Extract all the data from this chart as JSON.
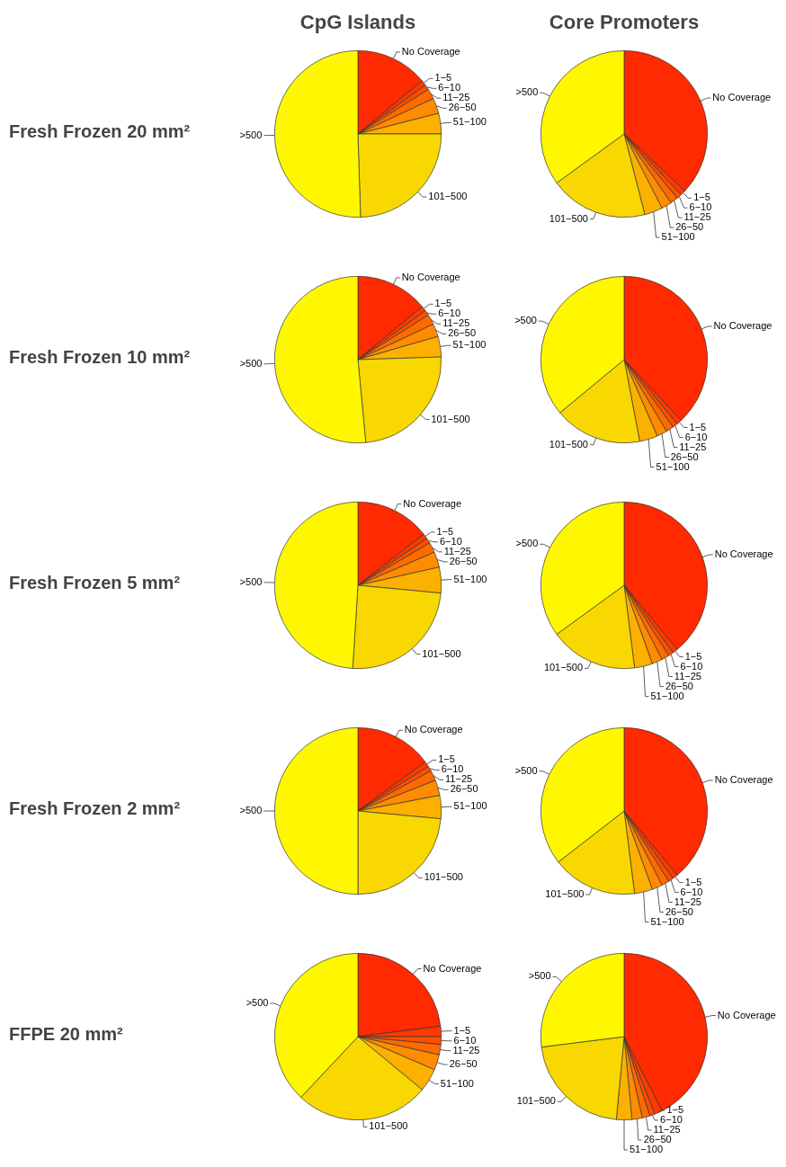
{
  "chart_data": [
    {
      "type": "pie",
      "title": "CpG Islands",
      "ylabel": "Fresh Frozen 20 mm²",
      "categories": [
        "No Coverage",
        "1−5",
        "6−10",
        "11−25",
        "26−50",
        "51−100",
        "101−500",
        ">500"
      ],
      "values": [
        14,
        1,
        1,
        2,
        3,
        4,
        24.5,
        50.5
      ],
      "colors": [
        "#ff2a00",
        "#ff3a00",
        "#ff4e00",
        "#ff6a00",
        "#ff8c00",
        "#fcb000",
        "#f8d800",
        "#fff700"
      ]
    },
    {
      "type": "pie",
      "title": "Core Promoters",
      "categories": [
        "No Coverage",
        "1−5",
        "6−10",
        "11−25",
        "26−50",
        "51−100",
        "101−500",
        ">500"
      ],
      "values": [
        37,
        1,
        1,
        1.5,
        2,
        3.5,
        19,
        35
      ],
      "colors": [
        "#ff2a00",
        "#ff3a00",
        "#ff4e00",
        "#ff6a00",
        "#ff8c00",
        "#fcb000",
        "#f8d800",
        "#fff700"
      ]
    },
    {
      "type": "pie",
      "ylabel": "Fresh Frozen 10 mm²",
      "categories": [
        "No Coverage",
        "1−5",
        "6−10",
        "11−25",
        "26−50",
        "51−100",
        "101−500",
        ">500"
      ],
      "values": [
        14,
        1,
        1,
        2,
        2.5,
        4,
        24,
        51.5
      ],
      "colors": [
        "#ff2a00",
        "#ff3a00",
        "#ff4e00",
        "#ff6a00",
        "#ff8c00",
        "#fcb000",
        "#f8d800",
        "#fff700"
      ]
    },
    {
      "type": "pie",
      "categories": [
        "No Coverage",
        "1−5",
        "6−10",
        "11−25",
        "26−50",
        "51−100",
        "101−500",
        ">500"
      ],
      "values": [
        38,
        1,
        1,
        1.5,
        2,
        3.5,
        17,
        36
      ],
      "colors": [
        "#ff2a00",
        "#ff3a00",
        "#ff4e00",
        "#ff6a00",
        "#ff8c00",
        "#fcb000",
        "#f8d800",
        "#fff700"
      ]
    },
    {
      "type": "pie",
      "ylabel": "Fresh Frozen 5 mm²",
      "categories": [
        "No Coverage",
        "1−5",
        "6−10",
        "11−25",
        "26−50",
        "51−100",
        "101−500",
        ">500"
      ],
      "values": [
        14.5,
        1,
        1,
        2,
        3,
        5,
        24.5,
        49
      ],
      "colors": [
        "#ff2a00",
        "#ff3a00",
        "#ff4e00",
        "#ff6a00",
        "#ff8c00",
        "#fcb000",
        "#f8d800",
        "#fff700"
      ]
    },
    {
      "type": "pie",
      "categories": [
        "No Coverage",
        "1−5",
        "6−10",
        "11−25",
        "26−50",
        "51−100",
        "101−500",
        ">500"
      ],
      "values": [
        39,
        1,
        1,
        1.5,
        2,
        3.5,
        17,
        35
      ],
      "colors": [
        "#ff2a00",
        "#ff3a00",
        "#ff4e00",
        "#ff6a00",
        "#ff8c00",
        "#fcb000",
        "#f8d800",
        "#fff700"
      ]
    },
    {
      "type": "pie",
      "ylabel": "Fresh Frozen 2 mm²",
      "categories": [
        "No Coverage",
        "1−5",
        "6−10",
        "11−25",
        "26−50",
        "51−100",
        "101−500",
        ">500"
      ],
      "values": [
        15,
        1,
        1,
        2,
        3,
        4.5,
        23.5,
        50
      ],
      "colors": [
        "#ff2a00",
        "#ff3a00",
        "#ff4e00",
        "#ff6a00",
        "#ff8c00",
        "#fcb000",
        "#f8d800",
        "#fff700"
      ]
    },
    {
      "type": "pie",
      "categories": [
        "No Coverage",
        "1−5",
        "6−10",
        "11−25",
        "26−50",
        "51−100",
        "101−500",
        ">500"
      ],
      "values": [
        39,
        1,
        1,
        1.5,
        2,
        3.5,
        16.5,
        35.5
      ],
      "colors": [
        "#ff2a00",
        "#ff3a00",
        "#ff4e00",
        "#ff6a00",
        "#ff8c00",
        "#fcb000",
        "#f8d800",
        "#fff700"
      ]
    },
    {
      "type": "pie",
      "ylabel": "FFPE 20 mm²",
      "categories": [
        "No Coverage",
        "1−5",
        "6−10",
        "11−25",
        "26−50",
        "51−100",
        "101−500",
        ">500"
      ],
      "values": [
        23,
        2,
        1.5,
        2,
        3,
        4.5,
        26,
        38
      ],
      "colors": [
        "#ff2a00",
        "#ff3a00",
        "#ff4e00",
        "#ff6a00",
        "#ff8c00",
        "#fcb000",
        "#f8d800",
        "#fff700"
      ]
    },
    {
      "type": "pie",
      "categories": [
        "No Coverage",
        "1−5",
        "6−10",
        "11−25",
        "26−50",
        "51−100",
        "101−500",
        ">500"
      ],
      "values": [
        42.5,
        1.5,
        1,
        1.5,
        2,
        3,
        21.5,
        27
      ],
      "colors": [
        "#ff2a00",
        "#ff3a00",
        "#ff4e00",
        "#ff6a00",
        "#ff8c00",
        "#fcb000",
        "#f8d800",
        "#fff700"
      ]
    }
  ]
}
